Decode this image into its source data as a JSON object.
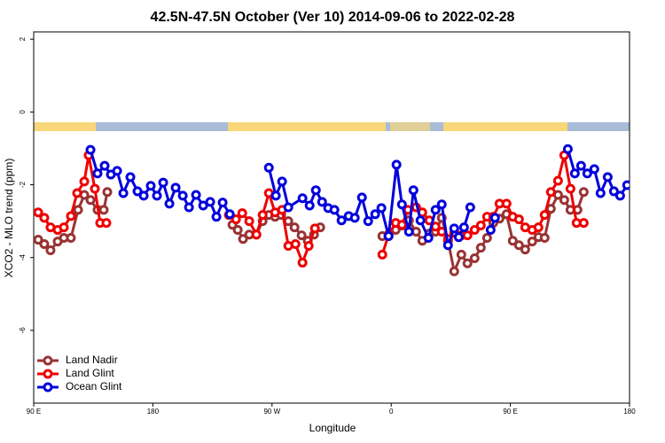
{
  "chart_data": {
    "type": "line",
    "title": "42.5N-47.5N October (Ver 10)   2014-09-06 to 2022-02-28",
    "x_label": "Longitude",
    "y_label": "XCO2 - MLO trend (ppm)",
    "xlim": [
      90,
      540
    ],
    "ylim": [
      -8,
      2.2
    ],
    "xticks": [
      {
        "value": 90,
        "label": "90 E"
      },
      180,
      {
        "value": 270,
        "label": "90 W"
      },
      {
        "value": 360,
        "label": "0"
      },
      {
        "value": 450,
        "label": "90 E"
      },
      {
        "value": 540,
        "label": "180"
      }
    ],
    "yticks": [
      2,
      0,
      -2,
      -4,
      -6
    ],
    "legend": "bottom-left",
    "series": [
      {
        "name": "Land Nadir",
        "color": "#993333",
        "x": [
          93.4,
          98.0,
          102.7,
          108.1,
          112.8,
          118.1,
          123.5,
          128.2,
          132.9,
          138.2,
          142.9,
          145.6,
          null,
          240.1,
          244.1,
          248.1,
          252.8,
          258.2,
          262.9,
          267.6,
          272.3,
          276.9,
          282.3,
          287.0,
          292.3,
          297.0,
          301.7,
          306.4,
          null,
          353.3,
          358.0,
          363.4,
          368.1,
          373.4,
          378.8,
          383.5,
          388.8,
          393.5,
          398.2,
          402.9,
          407.6,
          413.0,
          417.6,
          423.0,
          427.7,
          432.4,
          437.1,
          441.8,
          447.1,
          451.8,
          456.5,
          461.2,
          466.5,
          471.2,
          475.9,
          480.6,
          486.0,
          490.7,
          495.4,
          500.7,
          505.4
        ],
        "values": [
          -3.51,
          -3.63,
          -3.8,
          -3.56,
          -3.46,
          -3.46,
          -2.69,
          -2.28,
          -2.42,
          -2.69,
          -2.69,
          -2.2,
          null,
          -3.1,
          -3.24,
          -3.49,
          -3.37,
          -3.37,
          -3.0,
          -2.83,
          -2.88,
          -2.83,
          -3.0,
          -3.17,
          -3.39,
          -3.54,
          -3.37,
          -3.17,
          null,
          -3.41,
          -3.41,
          -3.24,
          -3.12,
          -2.98,
          -3.29,
          -3.54,
          -3.34,
          -3.29,
          -2.91,
          -3.54,
          -4.38,
          -3.92,
          -4.16,
          -4.02,
          -3.73,
          -3.46,
          -3.05,
          -2.93,
          -2.81,
          -3.54,
          -3.66,
          -3.78,
          -3.56,
          -3.44,
          -3.46,
          -2.66,
          -2.28,
          -2.42,
          -2.69,
          -2.69,
          -2.2
        ]
      },
      {
        "name": "Land Glint",
        "color": "#ee0000",
        "x": [
          93.4,
          98.0,
          102.7,
          108.1,
          112.8,
          118.1,
          122.8,
          128.2,
          131.5,
          136.2,
          140.2,
          144.9,
          null,
          237.4,
          242.8,
          247.5,
          252.8,
          258.2,
          262.9,
          267.6,
          272.3,
          277.6,
          282.3,
          287.7,
          293.0,
          297.7,
          302.4,
          null,
          353.3,
          358.0,
          363.4,
          368.1,
          372.7,
          378.8,
          383.5,
          388.8,
          393.5,
          398.2,
          402.9,
          407.6,
          413.0,
          417.6,
          423.0,
          427.7,
          432.4,
          437.1,
          441.8,
          447.1,
          451.8,
          456.5,
          461.2,
          466.5,
          471.2,
          475.9,
          480.6,
          486.0,
          490.7,
          495.4,
          500.0,
          505.4
        ],
        "values": [
          -2.76,
          -2.91,
          -3.17,
          -3.24,
          -3.17,
          -2.86,
          -2.23,
          -1.91,
          -1.19,
          -2.11,
          -3.05,
          -3.05,
          null,
          -2.83,
          -2.95,
          -2.78,
          -3.0,
          -3.37,
          -2.83,
          -2.23,
          -2.76,
          -2.69,
          -3.68,
          -3.63,
          -4.14,
          -3.68,
          -3.2,
          null,
          -3.92,
          -3.37,
          -3.05,
          -3.1,
          -2.69,
          -2.62,
          -2.76,
          -2.98,
          -3.15,
          -3.29,
          -3.49,
          -3.32,
          -3.39,
          -3.39,
          -3.24,
          -3.12,
          -2.88,
          -2.88,
          -2.52,
          -2.52,
          -2.88,
          -2.95,
          -3.17,
          -3.24,
          -3.17,
          -2.83,
          -2.2,
          -1.89,
          -1.19,
          -2.11,
          -3.05,
          -3.05
        ]
      },
      {
        "name": "Ocean Glint",
        "color": "#0000dd",
        "x": [
          132.9,
          138.2,
          143.6,
          148.3,
          153.0,
          157.7,
          163.0,
          168.4,
          173.1,
          178.4,
          183.1,
          187.8,
          192.5,
          197.2,
          202.6,
          207.3,
          212.6,
          218.0,
          223.3,
          228.0,
          232.7,
          238.1,
          null,
          267.6,
          272.9,
          277.6,
          282.3,
          293.0,
          298.4,
          303.1,
          307.8,
          312.4,
          317.1,
          322.5,
          327.9,
          332.5,
          337.9,
          342.6,
          347.9,
          352.6,
          358.0,
          364.0,
          368.1,
          373.4,
          376.8,
          382.1,
          388.1,
          393.5,
          398.2,
          402.9,
          407.6,
          411.0,
          415.0,
          419.7,
          null,
          435.1,
          438.4,
          null,
          493.4,
          498.7,
          503.4,
          508.1,
          513.4,
          518.1,
          523.5,
          528.2,
          532.9,
          538.2
        ],
        "values": [
          -1.04,
          -1.69,
          -1.48,
          -1.72,
          -1.62,
          -2.23,
          -1.79,
          -2.18,
          -2.3,
          -2.03,
          -2.3,
          -1.94,
          -2.52,
          -2.08,
          -2.3,
          -2.62,
          -2.28,
          -2.57,
          -2.47,
          -2.88,
          -2.49,
          -2.81,
          null,
          -1.53,
          -2.3,
          -1.91,
          -2.62,
          -2.37,
          -2.57,
          -2.15,
          -2.47,
          -2.64,
          -2.69,
          -2.98,
          -2.86,
          -2.91,
          -2.35,
          -3.0,
          -2.81,
          -2.64,
          -3.41,
          -1.45,
          -2.54,
          -3.29,
          -2.15,
          -2.98,
          -3.46,
          -2.69,
          -2.54,
          -3.66,
          -3.2,
          -3.44,
          -3.17,
          -2.62,
          null,
          -3.24,
          -2.91,
          null,
          -1.02,
          -1.69,
          -1.48,
          -1.69,
          -1.57,
          -2.23,
          -1.79,
          -2.18,
          -2.3,
          -2.01
        ]
      }
    ]
  }
}
